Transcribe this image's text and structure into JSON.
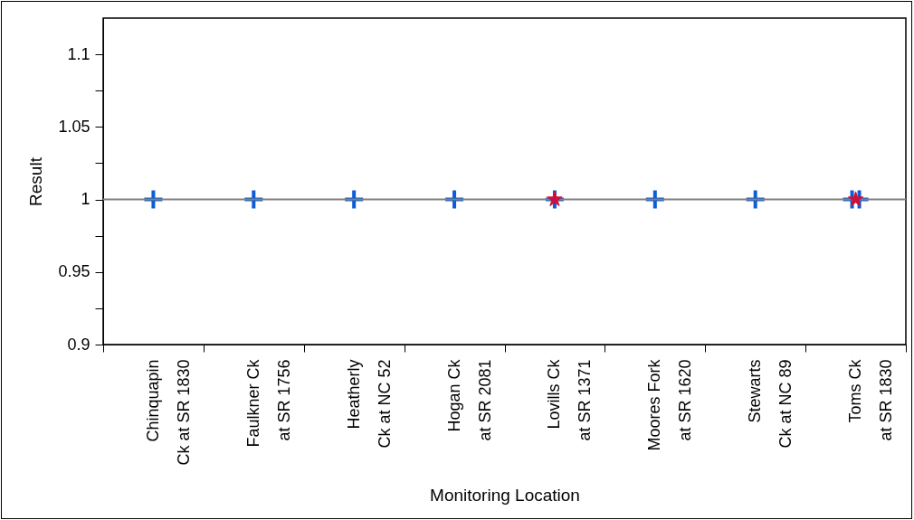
{
  "chart_data": {
    "type": "scatter",
    "xlabel": "Monitoring Location",
    "ylabel": "Result",
    "categories": [
      "Chinquapin\nCk at SR 1830",
      "Faulkner Ck\nat SR 1756",
      "Heatherly\nCk at NC 52",
      "Hogan Ck\nat SR 2081",
      "Lovills Ck\nat SR 1371",
      "Moores Fork\nat SR 1620",
      "Stewarts\nCk at NC 89",
      "Toms Ck\nat SR 1830"
    ],
    "ylim": [
      0.9,
      1.125
    ],
    "yticks": [
      0.9,
      {
        "value": 0.925,
        "label": null
      },
      0.95,
      {
        "value": 0.975,
        "label": null
      },
      1,
      {
        "value": 1.025,
        "label": null
      },
      1.05,
      {
        "value": 1.075,
        "label": null
      },
      1.1
    ],
    "series": [
      {
        "color": "#0b5ed7",
        "marker": "cross",
        "x": [
          "Chinquapin\nCk at SR 1830",
          "Faulkner Ck\nat SR 1756",
          "Heatherly\nCk at NC 52",
          "Hogan Ck\nat SR 2081",
          "Lovills Ck\nat SR 1371",
          "Moores Fork\nat SR 1620",
          "Stewarts\nCk at NC 89",
          "Toms Ck\nat SR 1830",
          "Toms Ck\nat SR 1830"
        ],
        "values": [
          1,
          1,
          1,
          1,
          1,
          1,
          1,
          1,
          1
        ]
      },
      {
        "color": "#d0103a",
        "marker": "star",
        "x": [
          "Lovills Ck\nat SR 1371",
          "Toms Ck\nat SR 1830"
        ],
        "values": [
          1,
          1
        ]
      }
    ],
    "ref_lines": [
      {
        "axis": "y",
        "value": 1,
        "color": "#808080"
      }
    ],
    "grid": false
  }
}
